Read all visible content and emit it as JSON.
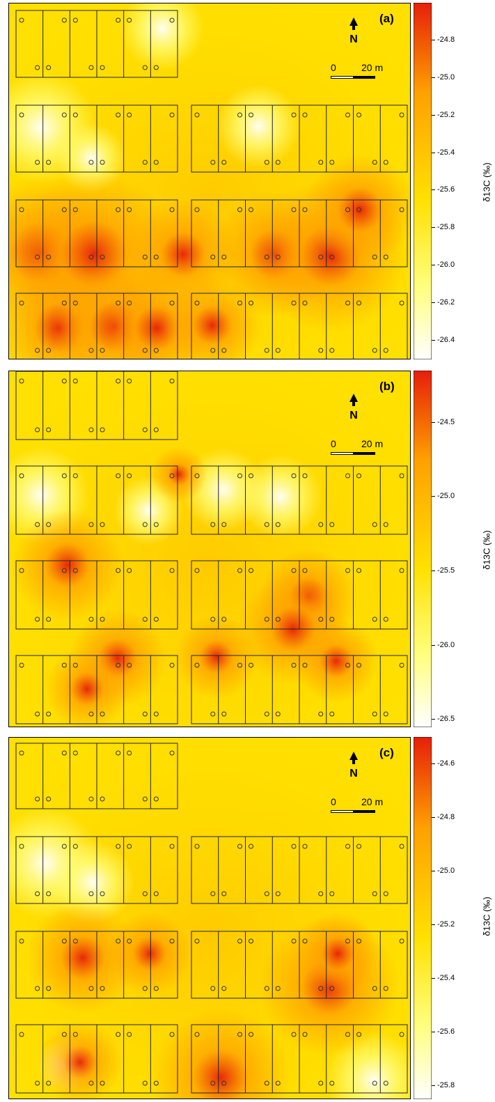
{
  "figure": {
    "panels": [
      {
        "label": "(a)",
        "north_label": "N",
        "scale_label_start": "0",
        "scale_label_end": "20 m",
        "colorbar_label": "δ13C (‰)",
        "colorbar_ticks": [
          "-24.8",
          "-25.0",
          "-25.2",
          "-25.4",
          "-25.6",
          "-25.8",
          "-26.0",
          "-26.2",
          "-26.4"
        ],
        "colorbar_range": [
          -26.5,
          -24.6
        ]
      },
      {
        "label": "(b)",
        "north_label": "N",
        "scale_label_start": "0",
        "scale_label_end": "20 m",
        "colorbar_label": "δ13C (‰)",
        "colorbar_ticks": [
          "-24.5",
          "-25.0",
          "-25.5",
          "-26.0",
          "-26.5"
        ],
        "colorbar_range": [
          -26.55,
          -24.15
        ]
      },
      {
        "label": "(c)",
        "north_label": "N",
        "scale_label_start": "0",
        "scale_label_end": "20 m",
        "colorbar_label": "δ13C (‰)",
        "colorbar_ticks": [
          "-24.6",
          "-24.8",
          "-25.0",
          "-25.2",
          "-25.4",
          "-25.6",
          "-25.8"
        ],
        "colorbar_range": [
          -25.85,
          -24.5
        ]
      }
    ],
    "colors": {
      "low": "#ffffff",
      "mid_low": "#ffff80",
      "mid": "#ffe000",
      "mid_high": "#ffa000",
      "high": "#e61f0a"
    }
  },
  "chart_data": [
    {
      "type": "heatmap",
      "title": "(a)",
      "colorbar_label": "δ13C (‰)",
      "zlim": [
        -26.5,
        -24.6
      ],
      "hotspots_value_min": -24.8,
      "background_value": -25.6,
      "low_spots_value": -26.4
    },
    {
      "type": "heatmap",
      "title": "(b)",
      "colorbar_label": "δ13C (‰)",
      "zlim": [
        -26.55,
        -24.15
      ],
      "hotspots_value_min": -24.4,
      "background_value": -25.9,
      "low_spots_value": -26.5
    },
    {
      "type": "heatmap",
      "title": "(c)",
      "colorbar_label": "δ13C (‰)",
      "zlim": [
        -25.85,
        -24.5
      ],
      "hotspots_value_min": -24.6,
      "background_value": -25.6,
      "low_spots_value": -25.8
    }
  ]
}
